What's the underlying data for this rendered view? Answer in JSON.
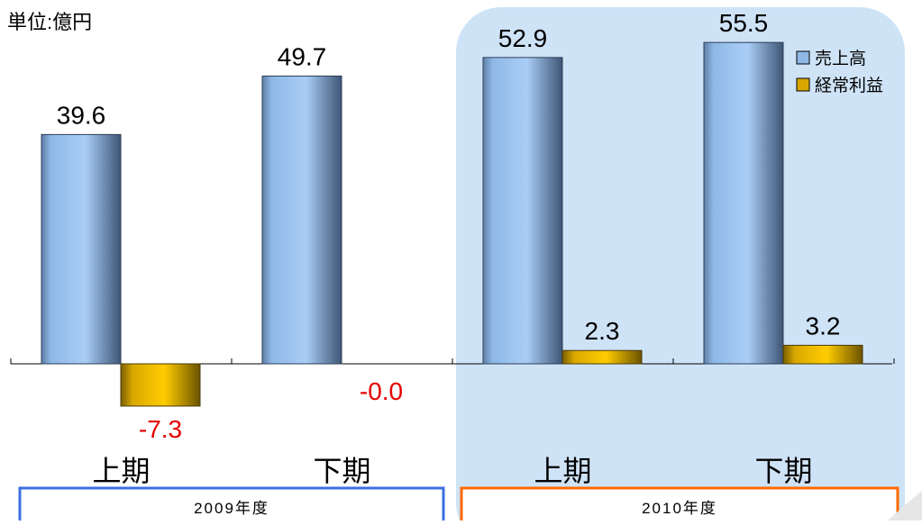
{
  "unit_label": "単位:億円",
  "colors": {
    "sales": "#8fb8e6",
    "profit": "#d9a800",
    "negative_label": "#e60000",
    "highlight_bg": "#cfe3f7",
    "fy2009_border": "#3c6fe0",
    "fy2010_border": "#ff6a00"
  },
  "chart_data": {
    "type": "bar",
    "categories": [
      "上期",
      "下期",
      "上期",
      "下期"
    ],
    "series": [
      {
        "name": "売上高",
        "values": [
          39.6,
          49.7,
          52.9,
          55.5
        ],
        "labels": [
          "39.6",
          "49.7",
          "52.9",
          "55.5"
        ]
      },
      {
        "name": "経常利益",
        "values": [
          -7.3,
          -0.0,
          2.3,
          3.2
        ],
        "labels": [
          "-7.3",
          "-0.0",
          "2.3",
          "3.2"
        ]
      }
    ],
    "groups": [
      {
        "label": "2009年度",
        "categories": [
          0,
          1
        ]
      },
      {
        "label": "2010年度",
        "categories": [
          2,
          3
        ],
        "highlighted": true
      }
    ],
    "legend_position": "top-right",
    "title": "",
    "xlabel": "",
    "ylabel": ""
  }
}
